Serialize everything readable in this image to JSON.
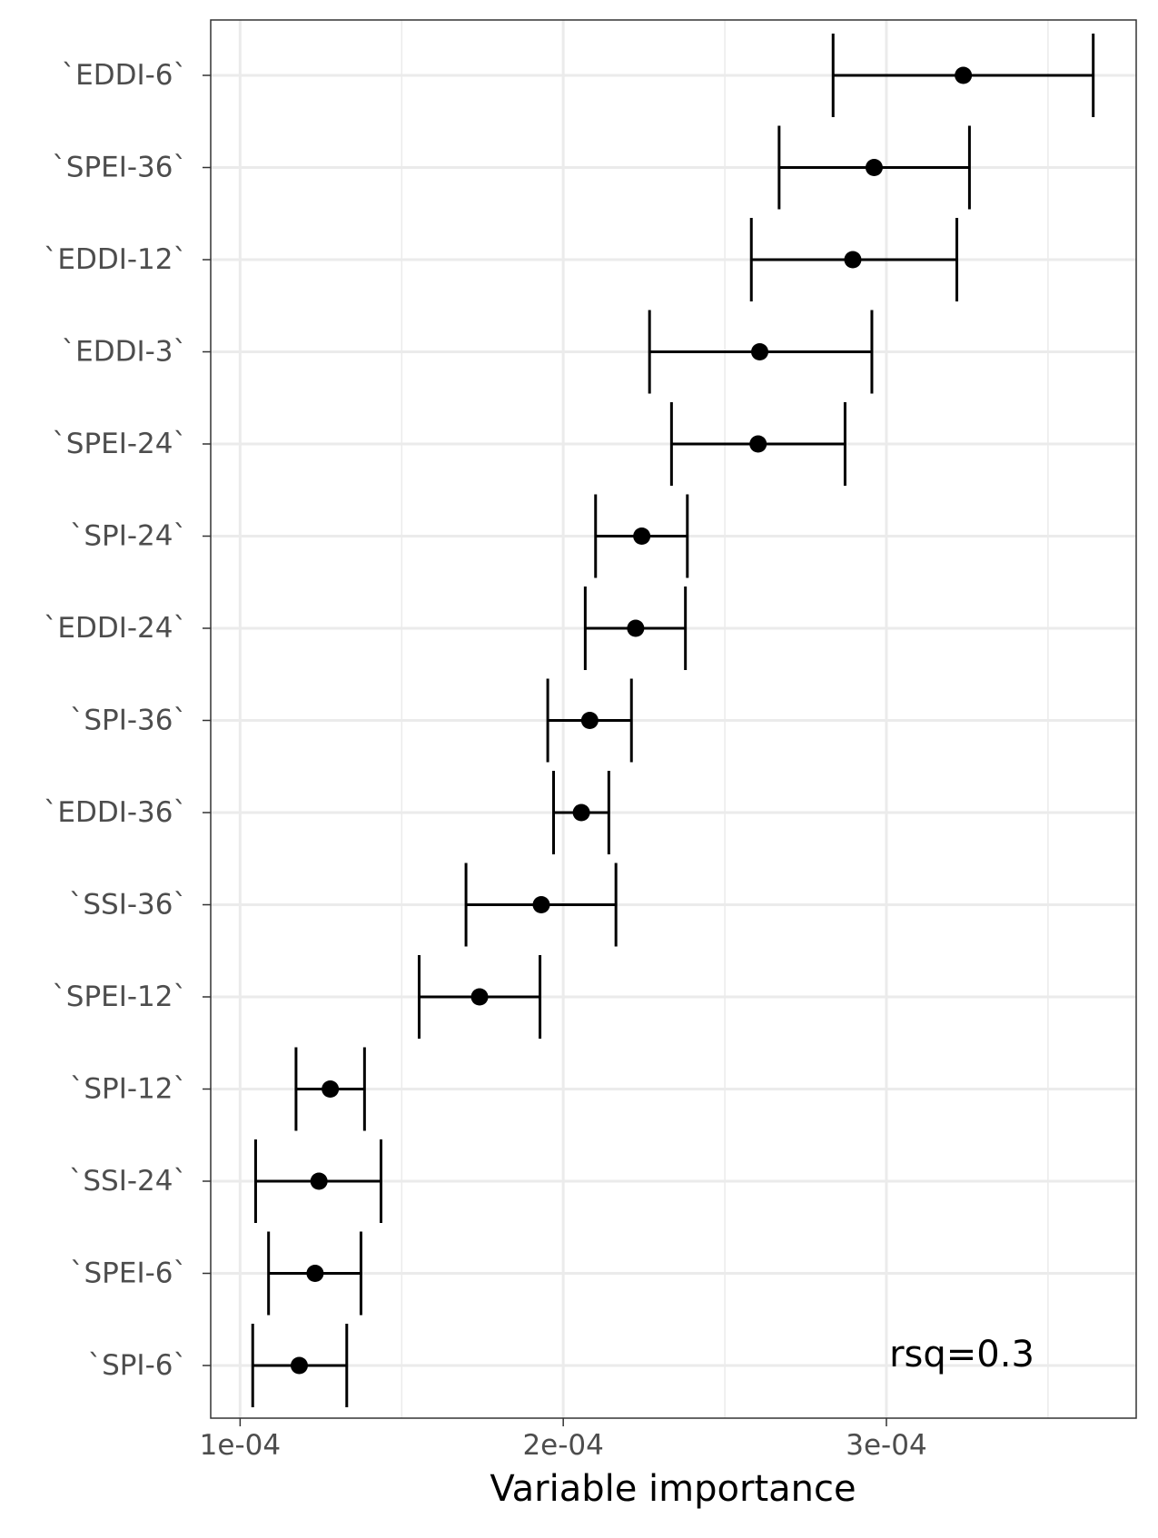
{
  "chart_data": {
    "type": "dot-errorbar",
    "xlabel": "Variable importance",
    "ylabel": "",
    "xlim": [
      9.09e-05,
      0.0003773
    ],
    "x_ticks": [
      0.0001,
      0.0002,
      0.0003
    ],
    "x_tick_labels": [
      "1e-04",
      "2e-04",
      "3e-04"
    ],
    "x_minor_gridlines": [
      0.00015,
      0.00025,
      0.00035
    ],
    "grid": true,
    "annotation": "rsq=0.3",
    "variables": [
      {
        "label": "`EDDI-6`",
        "estimate": 0.0003238,
        "lower": 0.0002835,
        "upper": 0.000364
      },
      {
        "label": "`SPEI-36`",
        "estimate": 0.0002962,
        "lower": 0.0002668,
        "upper": 0.0003257
      },
      {
        "label": "`EDDI-12`",
        "estimate": 0.0002896,
        "lower": 0.0002582,
        "upper": 0.0003218
      },
      {
        "label": "`EDDI-3`",
        "estimate": 0.0002608,
        "lower": 0.0002267,
        "upper": 0.0002955
      },
      {
        "label": "`SPEI-24`",
        "estimate": 0.0002603,
        "lower": 0.0002335,
        "upper": 0.0002872
      },
      {
        "label": "`SPI-24`",
        "estimate": 0.0002243,
        "lower": 0.00021,
        "upper": 0.0002384
      },
      {
        "label": "`EDDI-24`",
        "estimate": 0.0002224,
        "lower": 0.0002068,
        "upper": 0.0002378
      },
      {
        "label": "`SPI-36`",
        "estimate": 0.0002082,
        "lower": 0.0001952,
        "upper": 0.0002211
      },
      {
        "label": "`EDDI-36`",
        "estimate": 0.0002056,
        "lower": 0.000197,
        "upper": 0.0002141
      },
      {
        "label": "`SSI-36`",
        "estimate": 0.0001932,
        "lower": 0.0001699,
        "upper": 0.0002163
      },
      {
        "label": "`SPEI-12`",
        "estimate": 0.0001741,
        "lower": 0.0001554,
        "upper": 0.0001928
      },
      {
        "label": "`SPI-12`",
        "estimate": 0.0001279,
        "lower": 0.0001173,
        "upper": 0.0001385
      },
      {
        "label": "`SSI-24`",
        "estimate": 0.0001244,
        "lower": 0.0001048,
        "upper": 0.0001436
      },
      {
        "label": "`SPEI-6`",
        "estimate": 0.0001232,
        "lower": 0.0001088,
        "upper": 0.0001374
      },
      {
        "label": "`SPI-6`",
        "estimate": 0.0001183,
        "lower": 0.0001039,
        "upper": 0.000133
      }
    ]
  }
}
